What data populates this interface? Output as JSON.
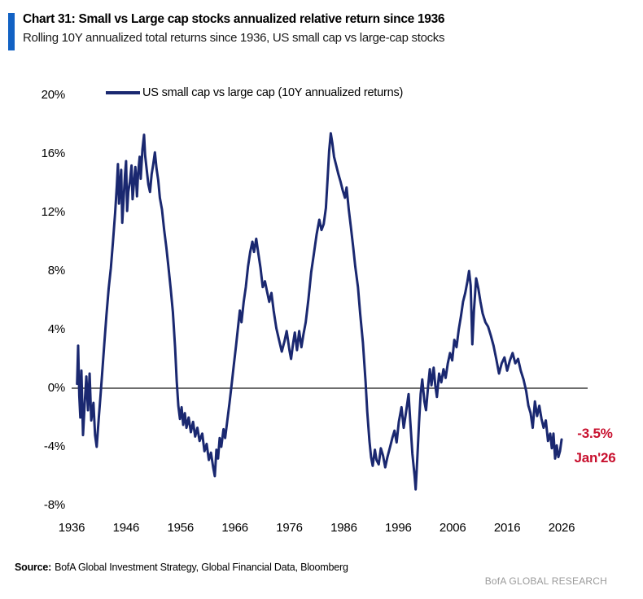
{
  "header": {
    "title": "Chart 31: Small vs Large cap stocks annualized relative return since 1936",
    "subtitle": "Rolling 10Y annualized total returns since 1936, US small cap vs large-cap stocks",
    "accent_color": "#1262C4"
  },
  "legend": {
    "label": "US small cap vs large cap (10Y annualized returns)"
  },
  "annotation": {
    "value": "-3.5%",
    "date": "Jan'26",
    "color": "#C8102E"
  },
  "footer": {
    "source_label": "Source:",
    "source_text": "BofA Global Investment Strategy, Global Financial Data, Bloomberg",
    "brand": "BofA GLOBAL RESEARCH"
  },
  "chart_data": {
    "type": "line",
    "title": "Chart 31: Small vs Large cap stocks annualized relative return since 1936",
    "subtitle": "Rolling 10Y annualized total returns since 1936, US small cap vs large-cap stocks",
    "xlabel": "",
    "ylabel": "",
    "xlim": [
      1936,
      2032
    ],
    "ylim": [
      -8,
      20
    ],
    "xticks": [
      1936,
      1946,
      1956,
      1966,
      1976,
      1986,
      1996,
      2006,
      2016,
      2026
    ],
    "yticks": [
      20,
      16,
      12,
      8,
      4,
      0,
      -4,
      -8
    ],
    "ytick_suffix": "%",
    "grid": false,
    "zero_line": true,
    "zero_line_color": "#3d3d3d",
    "legend_position": "top",
    "last_point_label": {
      "value_pct": -3.5,
      "date": "Jan'26"
    },
    "series": [
      {
        "name": "US small cap vs large cap (10Y annualized returns)",
        "color": "#1A2870",
        "unit": "percent",
        "points": [
          [
            1937.0,
            0.3
          ],
          [
            1937.2,
            2.9
          ],
          [
            1937.4,
            -0.5
          ],
          [
            1937.6,
            -2.0
          ],
          [
            1937.8,
            1.2
          ],
          [
            1938.1,
            -3.2
          ],
          [
            1938.4,
            -1.0
          ],
          [
            1938.7,
            0.8
          ],
          [
            1939.0,
            -1.5
          ],
          [
            1939.3,
            1.0
          ],
          [
            1939.6,
            -2.2
          ],
          [
            1940.0,
            -1.0
          ],
          [
            1940.3,
            -3.2
          ],
          [
            1940.6,
            -4.0
          ],
          [
            1941.0,
            -2.0
          ],
          [
            1941.3,
            -0.5
          ],
          [
            1941.6,
            1.0
          ],
          [
            1942.0,
            3.0
          ],
          [
            1942.4,
            5.0
          ],
          [
            1942.8,
            6.8
          ],
          [
            1943.2,
            8.2
          ],
          [
            1943.6,
            10.0
          ],
          [
            1944.0,
            12.0
          ],
          [
            1944.3,
            13.8
          ],
          [
            1944.5,
            15.3
          ],
          [
            1944.7,
            12.6
          ],
          [
            1944.9,
            13.8
          ],
          [
            1945.1,
            14.9
          ],
          [
            1945.3,
            11.3
          ],
          [
            1945.6,
            13.2
          ],
          [
            1945.8,
            14.6
          ],
          [
            1946.0,
            15.5
          ],
          [
            1946.2,
            12.1
          ],
          [
            1946.4,
            13.4
          ],
          [
            1946.7,
            14.1
          ],
          [
            1947.0,
            15.2
          ],
          [
            1947.2,
            12.9
          ],
          [
            1947.5,
            14.2
          ],
          [
            1947.7,
            15.1
          ],
          [
            1948.0,
            13.1
          ],
          [
            1948.2,
            14.6
          ],
          [
            1948.5,
            15.8
          ],
          [
            1948.7,
            14.3
          ],
          [
            1949.0,
            16.3
          ],
          [
            1949.3,
            17.3
          ],
          [
            1949.5,
            15.9
          ],
          [
            1949.8,
            14.9
          ],
          [
            1950.1,
            13.9
          ],
          [
            1950.4,
            13.4
          ],
          [
            1950.7,
            14.6
          ],
          [
            1951.0,
            15.3
          ],
          [
            1951.3,
            16.1
          ],
          [
            1951.6,
            15.0
          ],
          [
            1951.9,
            14.2
          ],
          [
            1952.2,
            13.0
          ],
          [
            1952.6,
            12.2
          ],
          [
            1953.0,
            10.8
          ],
          [
            1953.4,
            9.6
          ],
          [
            1953.8,
            8.2
          ],
          [
            1954.2,
            6.8
          ],
          [
            1954.6,
            5.2
          ],
          [
            1955.0,
            2.8
          ],
          [
            1955.3,
            0.5
          ],
          [
            1955.6,
            -1.2
          ],
          [
            1955.9,
            -2.1
          ],
          [
            1956.2,
            -1.3
          ],
          [
            1956.5,
            -2.5
          ],
          [
            1956.8,
            -1.7
          ],
          [
            1957.1,
            -2.7
          ],
          [
            1957.5,
            -2.0
          ],
          [
            1957.9,
            -3.0
          ],
          [
            1958.3,
            -2.3
          ],
          [
            1958.7,
            -3.3
          ],
          [
            1959.1,
            -2.7
          ],
          [
            1959.5,
            -3.6
          ],
          [
            1960.0,
            -3.1
          ],
          [
            1960.4,
            -4.3
          ],
          [
            1960.8,
            -3.8
          ],
          [
            1961.2,
            -4.9
          ],
          [
            1961.6,
            -4.4
          ],
          [
            1962.0,
            -5.4
          ],
          [
            1962.3,
            -6.0
          ],
          [
            1962.6,
            -4.2
          ],
          [
            1962.9,
            -4.8
          ],
          [
            1963.2,
            -3.4
          ],
          [
            1963.5,
            -4.0
          ],
          [
            1963.9,
            -2.8
          ],
          [
            1964.2,
            -3.4
          ],
          [
            1964.6,
            -2.2
          ],
          [
            1965.0,
            -1.0
          ],
          [
            1965.4,
            0.3
          ],
          [
            1965.8,
            1.6
          ],
          [
            1966.2,
            2.9
          ],
          [
            1966.6,
            4.3
          ],
          [
            1966.9,
            5.3
          ],
          [
            1967.2,
            4.5
          ],
          [
            1967.6,
            5.9
          ],
          [
            1968.0,
            6.9
          ],
          [
            1968.4,
            8.3
          ],
          [
            1968.8,
            9.3
          ],
          [
            1969.2,
            10.0
          ],
          [
            1969.5,
            9.3
          ],
          [
            1969.9,
            10.2
          ],
          [
            1970.3,
            9.2
          ],
          [
            1970.7,
            8.2
          ],
          [
            1971.1,
            6.9
          ],
          [
            1971.5,
            7.3
          ],
          [
            1971.9,
            6.6
          ],
          [
            1972.3,
            5.9
          ],
          [
            1972.7,
            6.5
          ],
          [
            1973.1,
            5.3
          ],
          [
            1973.6,
            4.1
          ],
          [
            1974.1,
            3.3
          ],
          [
            1974.6,
            2.5
          ],
          [
            1975.1,
            3.2
          ],
          [
            1975.5,
            3.9
          ],
          [
            1976.0,
            2.6
          ],
          [
            1976.3,
            2.0
          ],
          [
            1976.7,
            3.1
          ],
          [
            1977.0,
            3.8
          ],
          [
            1977.4,
            2.6
          ],
          [
            1977.8,
            3.9
          ],
          [
            1978.2,
            2.8
          ],
          [
            1978.6,
            3.7
          ],
          [
            1979.0,
            4.5
          ],
          [
            1979.5,
            6.1
          ],
          [
            1980.0,
            7.9
          ],
          [
            1980.5,
            9.2
          ],
          [
            1981.0,
            10.5
          ],
          [
            1981.5,
            11.5
          ],
          [
            1981.9,
            10.8
          ],
          [
            1982.3,
            11.2
          ],
          [
            1982.7,
            12.3
          ],
          [
            1983.0,
            14.2
          ],
          [
            1983.3,
            16.2
          ],
          [
            1983.6,
            17.4
          ],
          [
            1983.9,
            16.7
          ],
          [
            1984.2,
            15.8
          ],
          [
            1984.6,
            15.2
          ],
          [
            1985.0,
            14.6
          ],
          [
            1985.4,
            14.1
          ],
          [
            1985.8,
            13.5
          ],
          [
            1986.2,
            13.0
          ],
          [
            1986.5,
            13.7
          ],
          [
            1986.9,
            12.2
          ],
          [
            1987.3,
            11.0
          ],
          [
            1987.7,
            9.7
          ],
          [
            1988.1,
            8.3
          ],
          [
            1988.6,
            6.9
          ],
          [
            1989.0,
            5.1
          ],
          [
            1989.5,
            3.1
          ],
          [
            1990.0,
            0.4
          ],
          [
            1990.3,
            -1.6
          ],
          [
            1990.7,
            -3.6
          ],
          [
            1991.0,
            -4.7
          ],
          [
            1991.3,
            -5.3
          ],
          [
            1991.7,
            -4.2
          ],
          [
            1992.0,
            -4.9
          ],
          [
            1992.4,
            -5.2
          ],
          [
            1992.8,
            -4.1
          ],
          [
            1993.2,
            -4.6
          ],
          [
            1993.6,
            -5.4
          ],
          [
            1994.0,
            -4.7
          ],
          [
            1994.5,
            -4.0
          ],
          [
            1994.9,
            -3.4
          ],
          [
            1995.3,
            -2.9
          ],
          [
            1995.7,
            -3.7
          ],
          [
            1996.1,
            -2.3
          ],
          [
            1996.6,
            -1.3
          ],
          [
            1997.0,
            -2.7
          ],
          [
            1997.4,
            -1.7
          ],
          [
            1997.9,
            -0.4
          ],
          [
            1998.2,
            -2.2
          ],
          [
            1998.6,
            -4.5
          ],
          [
            1999.0,
            -6.0
          ],
          [
            1999.2,
            -6.9
          ],
          [
            1999.5,
            -4.8
          ],
          [
            1999.8,
            -2.4
          ],
          [
            2000.1,
            -0.4
          ],
          [
            2000.4,
            0.6
          ],
          [
            2000.8,
            -0.9
          ],
          [
            2001.1,
            -1.5
          ],
          [
            2001.5,
            0.2
          ],
          [
            2001.8,
            1.3
          ],
          [
            2002.1,
            0.2
          ],
          [
            2002.5,
            1.4
          ],
          [
            2002.8,
            0.2
          ],
          [
            2003.1,
            -0.6
          ],
          [
            2003.5,
            1.0
          ],
          [
            2003.9,
            0.4
          ],
          [
            2004.3,
            1.3
          ],
          [
            2004.7,
            0.7
          ],
          [
            2005.1,
            1.7
          ],
          [
            2005.5,
            2.4
          ],
          [
            2005.9,
            1.9
          ],
          [
            2006.3,
            3.3
          ],
          [
            2006.7,
            2.8
          ],
          [
            2007.1,
            4.0
          ],
          [
            2007.5,
            4.9
          ],
          [
            2007.9,
            5.9
          ],
          [
            2008.3,
            6.5
          ],
          [
            2008.7,
            7.3
          ],
          [
            2009.0,
            8.0
          ],
          [
            2009.3,
            7.0
          ],
          [
            2009.6,
            3.0
          ],
          [
            2009.9,
            5.3
          ],
          [
            2010.3,
            7.5
          ],
          [
            2010.7,
            6.8
          ],
          [
            2011.1,
            5.9
          ],
          [
            2011.5,
            5.1
          ],
          [
            2012.0,
            4.5
          ],
          [
            2012.5,
            4.2
          ],
          [
            2013.0,
            3.6
          ],
          [
            2013.5,
            2.9
          ],
          [
            2014.0,
            2.0
          ],
          [
            2014.5,
            1.0
          ],
          [
            2015.0,
            1.7
          ],
          [
            2015.5,
            2.1
          ],
          [
            2016.0,
            1.2
          ],
          [
            2016.5,
            1.9
          ],
          [
            2017.0,
            2.4
          ],
          [
            2017.5,
            1.7
          ],
          [
            2018.0,
            2.0
          ],
          [
            2018.5,
            1.2
          ],
          [
            2019.0,
            0.6
          ],
          [
            2019.5,
            -0.2
          ],
          [
            2019.9,
            -1.2
          ],
          [
            2020.3,
            -1.7
          ],
          [
            2020.7,
            -2.7
          ],
          [
            2021.1,
            -0.9
          ],
          [
            2021.5,
            -1.9
          ],
          [
            2021.9,
            -1.2
          ],
          [
            2022.3,
            -2.1
          ],
          [
            2022.7,
            -2.7
          ],
          [
            2023.1,
            -2.2
          ],
          [
            2023.5,
            -3.6
          ],
          [
            2023.9,
            -3.1
          ],
          [
            2024.2,
            -4.1
          ],
          [
            2024.5,
            -3.1
          ],
          [
            2024.8,
            -4.8
          ],
          [
            2025.1,
            -3.9
          ],
          [
            2025.4,
            -4.7
          ],
          [
            2025.7,
            -4.3
          ],
          [
            2026.0,
            -3.5
          ]
        ]
      }
    ]
  }
}
